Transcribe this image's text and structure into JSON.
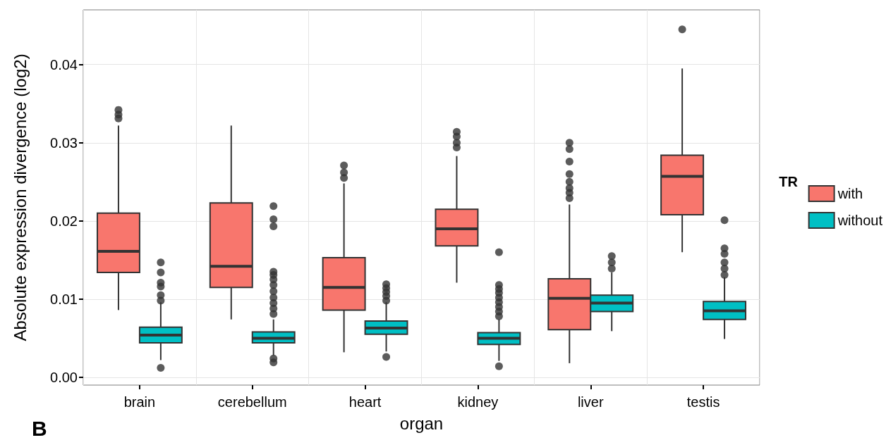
{
  "chart_data": {
    "type": "box",
    "xlabel": "organ",
    "ylabel": "Absolute expression divergence (log2)",
    "legend_title": "TR",
    "legend": "right",
    "grid": true,
    "categories": [
      "brain",
      "cerebellum",
      "heart",
      "kidney",
      "liver",
      "testis"
    ],
    "ylim": [
      -0.001,
      0.047
    ],
    "yticks": [
      {
        "value": 0,
        "label": "0.00"
      },
      {
        "value": 0.01,
        "label": "0.01"
      },
      {
        "value": 0.02,
        "label": "0.02"
      },
      {
        "value": 0.03,
        "label": "0.03"
      },
      {
        "value": 0.04,
        "label": "0.04"
      }
    ],
    "annotations": [
      "B"
    ],
    "series": [
      {
        "name": "with",
        "color": "#f8766d",
        "boxes": [
          {
            "low": 0.0086,
            "q1": 0.0134,
            "median": 0.0161,
            "q3": 0.021,
            "high": 0.0322,
            "outliers": [
              0.0342,
              0.0336,
              0.0331
            ]
          },
          {
            "low": 0.0074,
            "q1": 0.0115,
            "median": 0.0142,
            "q3": 0.0223,
            "high": 0.0322
          },
          {
            "low": 0.0032,
            "q1": 0.0086,
            "median": 0.0115,
            "q3": 0.0153,
            "high": 0.0248,
            "outliers": [
              0.0271,
              0.0262,
              0.0255
            ]
          },
          {
            "low": 0.0121,
            "q1": 0.0168,
            "median": 0.019,
            "q3": 0.0215,
            "high": 0.0283,
            "outliers": [
              0.0314,
              0.0308,
              0.03,
              0.0294
            ]
          },
          {
            "low": 0.0018,
            "q1": 0.0061,
            "median": 0.0101,
            "q3": 0.0126,
            "high": 0.0221,
            "outliers": [
              0.03,
              0.0292,
              0.0276,
              0.026,
              0.025,
              0.0242,
              0.0236,
              0.0229
            ]
          },
          {
            "low": 0.016,
            "q1": 0.0208,
            "median": 0.0257,
            "q3": 0.0284,
            "high": 0.0395,
            "outliers": [
              0.0445
            ]
          }
        ]
      },
      {
        "name": "without",
        "color": "#00bfc4",
        "boxes": [
          {
            "low": 0.0022,
            "q1": 0.0044,
            "median": 0.0054,
            "q3": 0.0064,
            "high": 0.0096,
            "outliers": [
              0.0147,
              0.0134,
              0.0121,
              0.0116,
              0.0105,
              0.0098,
              0.0012
            ]
          },
          {
            "low": 0.0028,
            "q1": 0.0044,
            "median": 0.005,
            "q3": 0.0058,
            "high": 0.0074,
            "outliers": [
              0.0219,
              0.0202,
              0.0193,
              0.0135,
              0.0131,
              0.0125,
              0.0118,
              0.011,
              0.0102,
              0.0095,
              0.0088,
              0.0081,
              0.0024,
              0.0019
            ]
          },
          {
            "low": 0.0033,
            "q1": 0.0055,
            "median": 0.0063,
            "q3": 0.0072,
            "high": 0.0096,
            "outliers": [
              0.0119,
              0.0114,
              0.0109,
              0.0104,
              0.0098,
              0.0026
            ]
          },
          {
            "low": 0.0021,
            "q1": 0.0042,
            "median": 0.005,
            "q3": 0.0057,
            "high": 0.0074,
            "outliers": [
              0.016,
              0.0118,
              0.0113,
              0.0108,
              0.0102,
              0.0096,
              0.009,
              0.0084,
              0.0078,
              0.0014
            ]
          },
          {
            "low": 0.0059,
            "q1": 0.0084,
            "median": 0.0095,
            "q3": 0.0105,
            "high": 0.0134,
            "outliers": [
              0.0155,
              0.0147,
              0.0139
            ]
          },
          {
            "low": 0.0049,
            "q1": 0.0074,
            "median": 0.0085,
            "q3": 0.0097,
            "high": 0.0128,
            "outliers": [
              0.0201,
              0.0165,
              0.0158,
              0.0147,
              0.0139,
              0.0131
            ]
          }
        ]
      }
    ]
  }
}
